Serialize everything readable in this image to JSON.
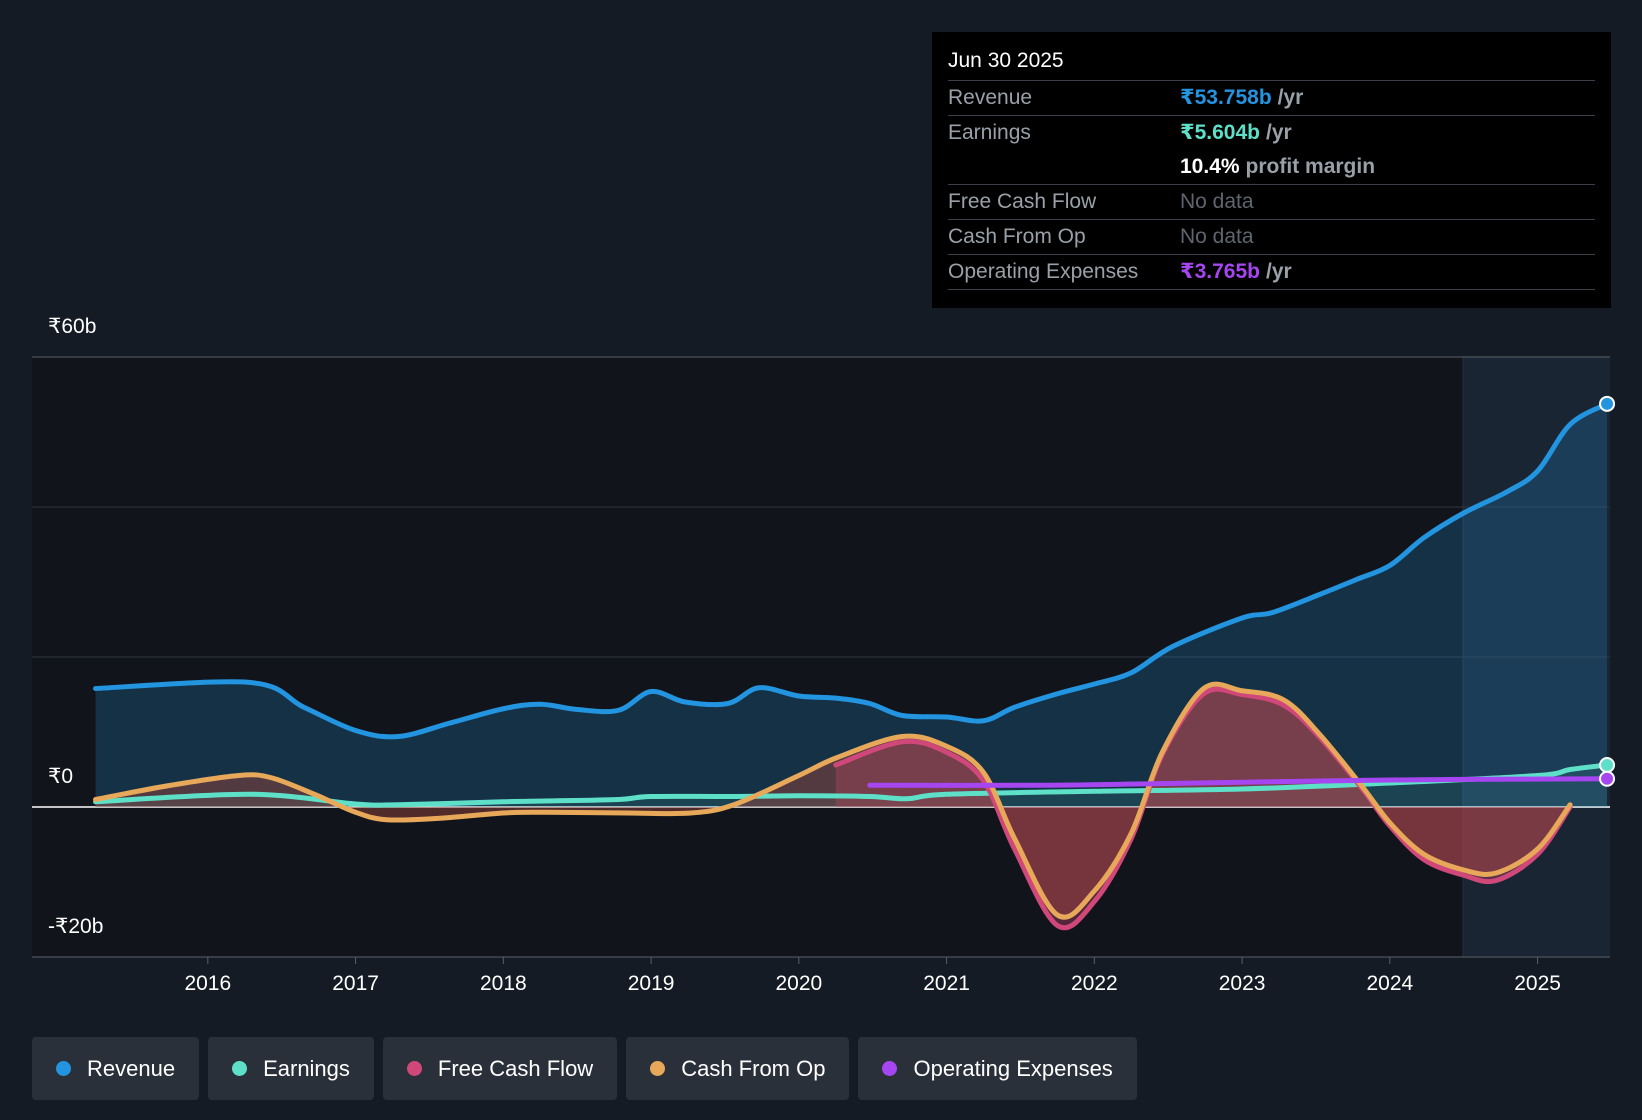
{
  "chart_data": {
    "type": "line",
    "tooltip": {
      "date": "Jun 30 2025",
      "rows": [
        {
          "label": "Revenue",
          "value": "₹53.758b",
          "unit": "/yr"
        },
        {
          "label": "Earnings",
          "value": "₹5.604b",
          "unit": "/yr"
        },
        {
          "label": null,
          "value": "10.4%",
          "unit": "profit margin"
        },
        {
          "label": "Free Cash Flow",
          "value": "No data",
          "unit": null
        },
        {
          "label": "Cash From Op",
          "value": "No data",
          "unit": null
        },
        {
          "label": "Operating Expenses",
          "value": "₹3.765b",
          "unit": "/yr"
        }
      ]
    },
    "xlim": [
      2014.81,
      2025.49
    ],
    "xticks": [
      2016,
      2017,
      2018,
      2019,
      2020,
      2021,
      2022,
      2023,
      2024,
      2025
    ],
    "ylim": [
      -20,
      60
    ],
    "yticks": [
      {
        "value": -20,
        "label": "-₹20b"
      },
      {
        "value": 0,
        "label": "₹0"
      },
      {
        "value": 20,
        "label": null
      },
      {
        "value": 40,
        "label": null
      },
      {
        "value": 60,
        "label": "₹60b"
      }
    ],
    "grid": true,
    "series": [
      {
        "name": "Revenue",
        "color": "#2394df",
        "x": [
          2015.24,
          2016.29,
          2016.65,
          2017.0,
          2017.29,
          2017.64,
          2018.0,
          2018.25,
          2018.5,
          2018.78,
          2019.0,
          2019.23,
          2019.52,
          2019.73,
          2020.0,
          2020.26,
          2020.48,
          2020.7,
          2021.0,
          2021.25,
          2021.46,
          2021.75,
          2022.0,
          2022.25,
          2022.53,
          2023.0,
          2023.2,
          2023.52,
          2023.77,
          2024.0,
          2024.23,
          2024.5,
          2024.79,
          2025.0,
          2025.22,
          2025.47
        ],
        "values": [
          15.8,
          16.6,
          13.3,
          10.2,
          9.4,
          11.2,
          13.1,
          13.7,
          13.0,
          12.9,
          15.4,
          14.0,
          13.8,
          15.9,
          14.8,
          14.5,
          13.8,
          12.2,
          12.0,
          11.5,
          13.3,
          15.1,
          16.4,
          17.9,
          21.4,
          25.2,
          25.9,
          28.3,
          30.3,
          32.2,
          35.9,
          39.2,
          42.0,
          44.8,
          51.0,
          53.758
        ]
      },
      {
        "name": "Earnings",
        "color": "#5ee0c8",
        "x": [
          2015.24,
          2016.29,
          2017.0,
          2017.29,
          2018.0,
          2018.28,
          2018.78,
          2019.0,
          2019.56,
          2020.0,
          2020.48,
          2020.73,
          2021.0,
          2022.0,
          2023.0,
          2024.0,
          2025.0,
          2025.22,
          2025.47
        ],
        "values": [
          0.7,
          1.7,
          0.4,
          0.3,
          0.7,
          0.8,
          1.0,
          1.4,
          1.4,
          1.5,
          1.4,
          1.1,
          1.7,
          2.1,
          2.4,
          3.2,
          4.2,
          5.0,
          5.604
        ]
      },
      {
        "name": "Free Cash Flow",
        "color": "#d0487a",
        "x": [
          2020.25,
          2020.7,
          2021.0,
          2021.25,
          2021.46,
          2021.75,
          2022.0,
          2022.25,
          2022.46,
          2022.74,
          2023.0,
          2023.28,
          2023.52,
          2023.81,
          2024.0,
          2024.23,
          2024.5,
          2024.72,
          2025.0,
          2025.22
        ],
        "values": [
          5.6,
          8.7,
          7.3,
          3.5,
          -5.6,
          -15.8,
          -12.6,
          -4.2,
          7.0,
          15.1,
          15.0,
          13.6,
          9.4,
          2.5,
          -2.5,
          -7.0,
          -9.1,
          -9.8,
          -6.3,
          0.0
        ]
      },
      {
        "name": "Cash From Op",
        "color": "#e7a85a",
        "x": [
          2015.24,
          2015.72,
          2016.21,
          2016.43,
          2016.72,
          2017.0,
          2017.21,
          2017.57,
          2018.0,
          2018.28,
          2018.84,
          2019.27,
          2019.56,
          2020.0,
          2020.26,
          2020.7,
          2021.0,
          2021.25,
          2021.46,
          2021.75,
          2022.0,
          2022.25,
          2022.46,
          2022.74,
          2023.0,
          2023.28,
          2023.52,
          2023.81,
          2024.0,
          2024.23,
          2024.5,
          2024.72,
          2025.0,
          2025.22
        ],
        "values": [
          1.0,
          2.8,
          4.2,
          3.9,
          1.7,
          -0.7,
          -1.7,
          -1.5,
          -0.8,
          -0.7,
          -0.8,
          -0.8,
          0.3,
          4.2,
          6.6,
          9.4,
          8.1,
          4.6,
          -4.2,
          -14.4,
          -11.2,
          -3.5,
          7.3,
          15.8,
          15.5,
          14.3,
          9.8,
          2.8,
          -2.1,
          -6.3,
          -8.4,
          -8.8,
          -5.6,
          0.3
        ]
      },
      {
        "name": "Operating Expenses",
        "color": "#a546f0",
        "x": [
          2020.48,
          2021.68,
          2022.39,
          2024.0,
          2025.47
        ],
        "values": [
          2.9,
          2.9,
          3.1,
          3.6,
          3.765
        ]
      }
    ]
  }
}
